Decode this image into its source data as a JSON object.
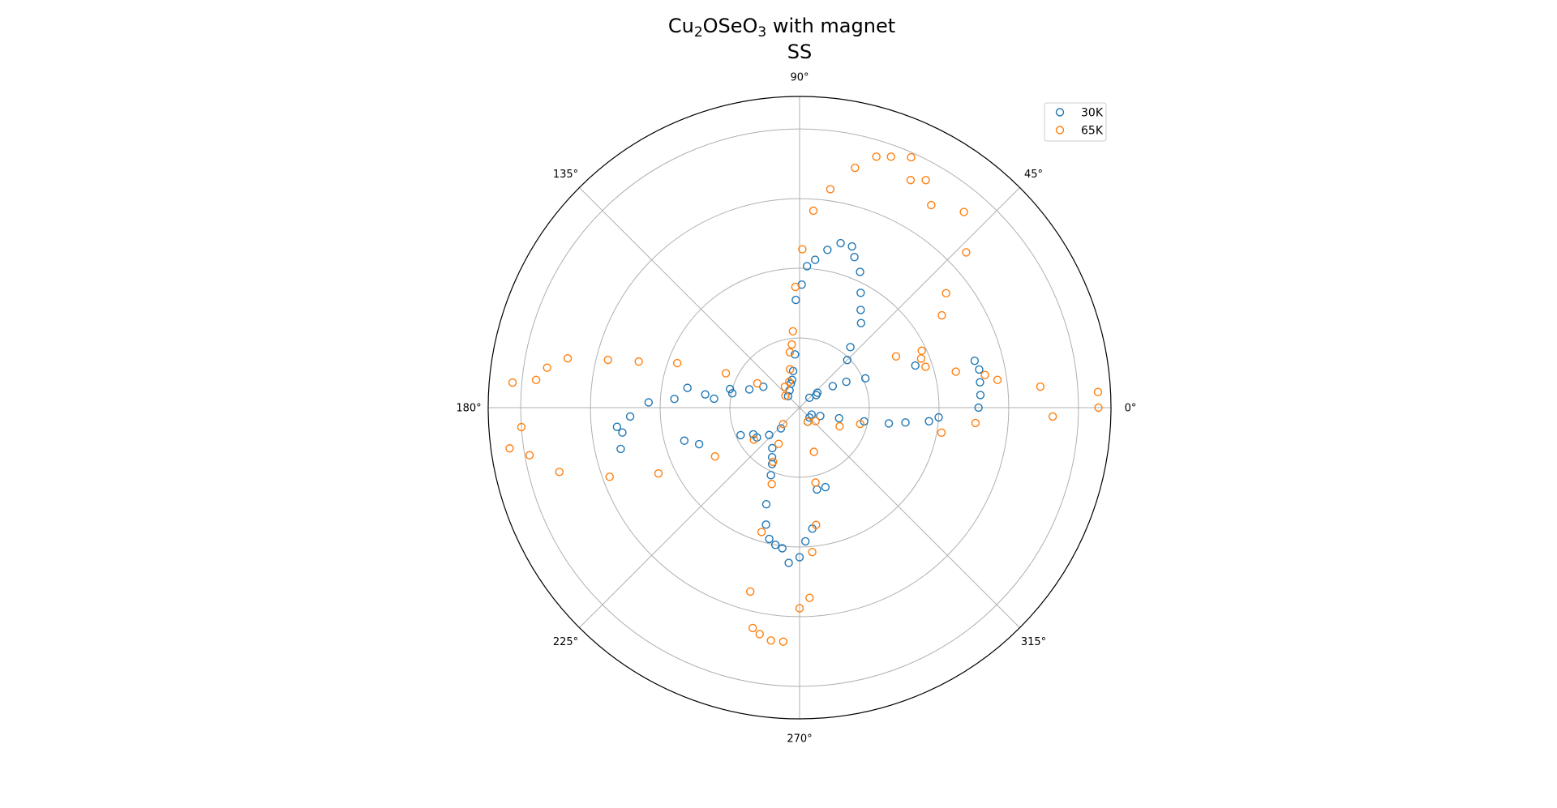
{
  "chart_data": {
    "type": "scatter",
    "projection": "polar",
    "title": {
      "line1": {
        "pre": "Cu",
        "sub1": "2",
        "mid": "OSe",
        "sub2": "O",
        "sub3": "3",
        "post": " with magnet"
      },
      "line2": "SS"
    },
    "theta_ticks": [
      "0°",
      "45°",
      "90°",
      "135°",
      "180°",
      "225°",
      "270°",
      "315°"
    ],
    "r_gridlines": 4,
    "grid": true,
    "legend_placement": "top-right",
    "series": [
      {
        "name": "30K",
        "color": "#1f77b4",
        "marker": "open-circle",
        "points": [
          [
            0.0,
            3.85
          ],
          [
            4.0,
            3.9
          ],
          [
            8.0,
            3.92
          ],
          [
            12.0,
            3.95
          ],
          [
            15.0,
            3.9
          ],
          [
            20.0,
            2.65
          ],
          [
            24.0,
            1.55
          ],
          [
            29.0,
            1.15
          ],
          [
            33.0,
            0.85
          ],
          [
            37.0,
            0.45
          ],
          [
            40.0,
            0.5
          ],
          [
            45.0,
            0.3
          ],
          [
            45.0,
            1.45
          ],
          [
            50.0,
            1.7
          ],
          [
            54.0,
            2.25
          ],
          [
            58.0,
            2.48
          ],
          [
            62.0,
            2.8
          ],
          [
            66.0,
            3.2
          ],
          [
            70.0,
            3.45
          ],
          [
            72.0,
            3.65
          ],
          [
            76.0,
            3.65
          ],
          [
            80.0,
            3.45
          ],
          [
            84.0,
            3.2
          ],
          [
            87.0,
            3.05
          ],
          [
            89.0,
            2.65
          ],
          [
            92.0,
            2.32
          ],
          [
            95.0,
            1.15
          ],
          [
            100.0,
            0.8
          ],
          [
            105.0,
            0.62
          ],
          [
            110.0,
            0.55
          ],
          [
            120.0,
            0.43
          ],
          [
            135.0,
            0.35
          ],
          [
            150.0,
            0.9
          ],
          [
            160.0,
            1.15
          ],
          [
            165.0,
            1.55
          ],
          [
            168.0,
            1.48
          ],
          [
            170.0,
            2.45
          ],
          [
            172.0,
            2.05
          ],
          [
            174.0,
            1.85
          ],
          [
            176.0,
            2.7
          ],
          [
            178.0,
            3.25
          ],
          [
            183.0,
            3.65
          ],
          [
            186.0,
            3.95
          ],
          [
            188.0,
            3.85
          ],
          [
            193.0,
            3.95
          ],
          [
            196.0,
            2.58
          ],
          [
            200.0,
            2.3
          ],
          [
            205.0,
            1.4
          ],
          [
            210.0,
            1.15
          ],
          [
            215.0,
            1.12
          ],
          [
            222.0,
            0.88
          ],
          [
            228.0,
            0.6
          ],
          [
            236.0,
            1.05
          ],
          [
            241.0,
            1.22
          ],
          [
            244.0,
            1.35
          ],
          [
            247.0,
            1.58
          ],
          [
            251.0,
            2.2
          ],
          [
            254.0,
            2.62
          ],
          [
            257.0,
            2.9
          ],
          [
            260.0,
            3.0
          ],
          [
            263.0,
            3.05
          ],
          [
            266.0,
            3.35
          ],
          [
            270.0,
            3.22
          ],
          [
            272.5,
            2.88
          ],
          [
            276.0,
            2.62
          ],
          [
            282.0,
            1.8
          ],
          [
            288.0,
            1.8
          ],
          [
            300.0,
            0.35
          ],
          [
            315.0,
            0.3
          ],
          [
            330.0,
            0.3
          ],
          [
            338.0,
            0.48
          ],
          [
            345.0,
            0.88
          ],
          [
            348.0,
            1.42
          ],
          [
            350.0,
            1.95
          ],
          [
            352.0,
            2.3
          ],
          [
            354.0,
            2.8
          ],
          [
            356.0,
            3.0
          ]
        ]
      },
      {
        "name": "65K",
        "color": "#ff7f0e",
        "marker": "open-circle",
        "points": [
          [
            0.0,
            6.43
          ],
          [
            3.0,
            6.43
          ],
          [
            5.0,
            5.2
          ],
          [
            8.0,
            4.3
          ],
          [
            10.0,
            4.05
          ],
          [
            13.0,
            3.45
          ],
          [
            18.0,
            2.85
          ],
          [
            22.0,
            2.82
          ],
          [
            25.0,
            2.9
          ],
          [
            28.0,
            2.35
          ],
          [
            33.0,
            3.65
          ],
          [
            38.0,
            4.0
          ],
          [
            43.0,
            4.9
          ],
          [
            50.0,
            5.5
          ],
          [
            57.0,
            5.2
          ],
          [
            61.0,
            5.6
          ],
          [
            64.0,
            5.45
          ],
          [
            66.0,
            5.9
          ],
          [
            70.0,
            5.75
          ],
          [
            73.0,
            5.65
          ],
          [
            77.0,
            5.3
          ],
          [
            82.0,
            4.75
          ],
          [
            86.0,
            4.25
          ],
          [
            89.0,
            3.41
          ],
          [
            92.0,
            2.6
          ],
          [
            95.0,
            1.65
          ],
          [
            97.0,
            1.37
          ],
          [
            100.0,
            1.21
          ],
          [
            104.0,
            0.85
          ],
          [
            112.0,
            0.6
          ],
          [
            125.0,
            0.55
          ],
          [
            140.0,
            0.4
          ],
          [
            150.0,
            1.05
          ],
          [
            155.0,
            1.75
          ],
          [
            160.0,
            2.8
          ],
          [
            164.0,
            3.6
          ],
          [
            166.0,
            4.25
          ],
          [
            168.0,
            5.1
          ],
          [
            171.0,
            5.5
          ],
          [
            174.0,
            5.7
          ],
          [
            175.0,
            6.2
          ],
          [
            184.0,
            6.0
          ],
          [
            188.0,
            6.3
          ],
          [
            190.0,
            5.9
          ],
          [
            195.0,
            5.35
          ],
          [
            200.0,
            4.35
          ],
          [
            205.0,
            3.35
          ],
          [
            210.0,
            2.1
          ],
          [
            215.0,
            1.2
          ],
          [
            225.0,
            0.5
          ],
          [
            240.0,
            0.9
          ],
          [
            244.0,
            1.3
          ],
          [
            250.0,
            1.75
          ],
          [
            253.0,
            2.8
          ],
          [
            255.0,
            4.1
          ],
          [
            258.0,
            4.85
          ],
          [
            260.0,
            4.95
          ],
          [
            263.0,
            5.05
          ],
          [
            266.0,
            5.05
          ],
          [
            270.0,
            4.32
          ],
          [
            273.0,
            4.1
          ],
          [
            275.0,
            3.12
          ],
          [
            278.0,
            2.55
          ],
          [
            282.0,
            1.65
          ],
          [
            288.0,
            1.0
          ],
          [
            300.0,
            0.35
          ],
          [
            320.0,
            0.45
          ],
          [
            335.0,
            0.95
          ],
          [
            345.0,
            1.35
          ],
          [
            350.0,
            3.1
          ],
          [
            355.0,
            3.8
          ],
          [
            358.0,
            5.45
          ]
        ]
      }
    ]
  }
}
